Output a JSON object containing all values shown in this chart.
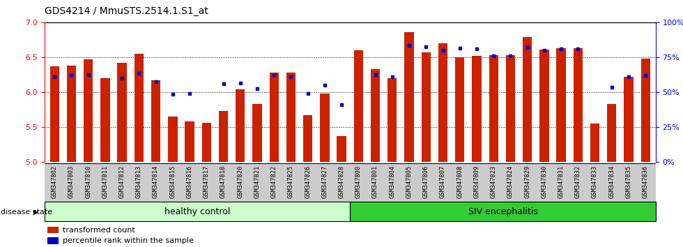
{
  "title": "GDS4214 / MmuSTS.2514.1.S1_at",
  "samples": [
    "GSM347802",
    "GSM347803",
    "GSM347810",
    "GSM347811",
    "GSM347812",
    "GSM347813",
    "GSM347814",
    "GSM347815",
    "GSM347816",
    "GSM347817",
    "GSM347818",
    "GSM347820",
    "GSM347821",
    "GSM347822",
    "GSM347825",
    "GSM347826",
    "GSM347827",
    "GSM347828",
    "GSM347800",
    "GSM347801",
    "GSM347804",
    "GSM347805",
    "GSM347806",
    "GSM347807",
    "GSM347808",
    "GSM347809",
    "GSM347823",
    "GSM347824",
    "GSM347829",
    "GSM347830",
    "GSM347831",
    "GSM347832",
    "GSM347833",
    "GSM347834",
    "GSM347835",
    "GSM347836"
  ],
  "red_values": [
    6.37,
    6.38,
    6.47,
    6.2,
    6.42,
    6.55,
    6.17,
    5.65,
    5.58,
    5.56,
    5.73,
    6.04,
    5.83,
    6.28,
    6.28,
    5.67,
    5.98,
    5.37,
    6.6,
    6.33,
    6.2,
    6.86,
    6.57,
    6.7,
    6.5,
    6.52,
    6.53,
    6.53,
    6.79,
    6.61,
    6.63,
    6.63,
    5.55,
    5.83,
    6.22,
    6.48
  ],
  "blue_values": [
    6.22,
    6.24,
    6.25,
    null,
    6.2,
    6.27,
    6.15,
    5.97,
    5.98,
    null,
    6.12,
    6.13,
    6.05,
    6.24,
    6.22,
    5.98,
    6.1,
    5.82,
    null,
    6.25,
    6.22,
    6.67,
    6.65,
    6.6,
    6.63,
    6.62,
    6.52,
    6.52,
    6.64,
    6.6,
    6.62,
    6.62,
    null,
    6.07,
    6.22,
    6.24
  ],
  "healthy_count": 18,
  "siv_count": 18,
  "bar_color": "#cc2200",
  "dot_color": "#0000cc",
  "ylim_left": [
    5.0,
    7.0
  ],
  "ylim_right": [
    0,
    100
  ],
  "yticks_left": [
    5.0,
    5.5,
    6.0,
    6.5,
    7.0
  ],
  "yticks_right": [
    0,
    25,
    50,
    75,
    100
  ],
  "ytick_labels_right": [
    "0%",
    "25%",
    "50%",
    "75%",
    "100%"
  ],
  "hlines": [
    5.5,
    6.0,
    6.5
  ],
  "healthy_label": "healthy control",
  "siv_label": "SIV encephalitis",
  "disease_state_label": "disease state",
  "legend_red": "transformed count",
  "legend_blue": "percentile rank within the sample",
  "healthy_color": "#ccffcc",
  "siv_color": "#33cc33",
  "bar_bottom": 5.0,
  "xtick_bg_color": "#cccccc"
}
